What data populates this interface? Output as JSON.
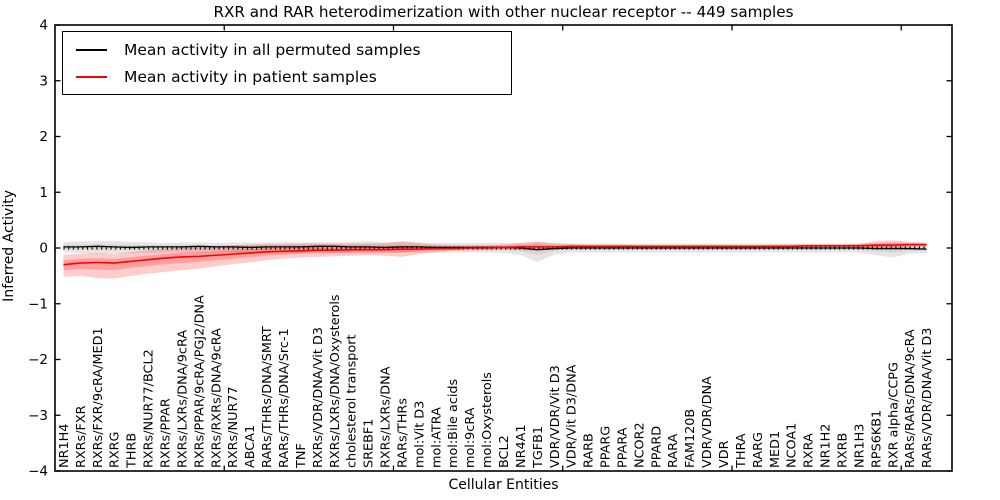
{
  "chart_data": {
    "type": "line",
    "title": "RXR and RAR heterodimerization with other nuclear receptor -- 449 samples",
    "xlabel": "Cellular Entities",
    "ylabel": "Inferred Activity",
    "xlim": [
      0,
      53
    ],
    "ylim": [
      -4,
      4
    ],
    "yticks": [
      4,
      3,
      2,
      1,
      0,
      -1,
      -2,
      -3,
      -4
    ],
    "xticks": [
      10,
      20,
      30,
      40,
      50
    ],
    "grid": false,
    "legend": {
      "position": "upper left"
    },
    "zero_line": {
      "y": 0,
      "style": "dense-vertical-dashes",
      "color": "#000000"
    },
    "categories": [
      "NR1H4",
      "RXRs/FXR",
      "RXRs/FXR/9cRA/MED1",
      "RXRG",
      "THRB",
      "RXRs/NUR77/BCL2",
      "RXRs/PPAR",
      "RXRs/LXRs/DNA/9cRA",
      "RXRs/PPAR/9cRA/PGJ2/DNA",
      "RXRs/RXRs/DNA/9cRA",
      "RXRs/NUR77",
      "ABCA1",
      "RARs/THRs/DNA/SMRT",
      "RARs/THRs/DNA/Src-1",
      "TNF",
      "RXRs/VDR/DNA/Vit D3",
      "RXRs/LXRs/DNA/Oxysterols",
      "cholesterol transport",
      "SREBF1",
      "RXRs/LXRs/DNA",
      "RARs/THRs",
      "mol:Vit D3",
      "mol:ATRA",
      "mol:Bile acids",
      "mol:9cRA",
      "mol:Oxysterols",
      "BCL2",
      "NR4A1",
      "TGFB1",
      "VDR/VDR/Vit D3",
      "VDR/Vit D3/DNA",
      "RARB",
      "PPARG",
      "PPARA",
      "NCOR2",
      "PPARD",
      "RARA",
      "FAM120B",
      "VDR/VDR/DNA",
      "VDR",
      "THRA",
      "RARG",
      "MED1",
      "NCOA1",
      "RXRA",
      "NR1H2",
      "RXRB",
      "NR1H3",
      "RPS6KB1",
      "RXR alpha/CCPG",
      "RARs/RARs/DNA/9cRA",
      "RARs/VDR/DNA/Vit D3"
    ],
    "series": [
      {
        "name": "Mean activity in all permuted samples",
        "color": "#000000",
        "band_fill": "rgba(0,0,0,0.10)",
        "band_fill_inner": "rgba(0,0,0,0.06)",
        "values": [
          0.02,
          0.02,
          0.03,
          0.02,
          0.01,
          0.02,
          0.02,
          0.02,
          0.03,
          0.02,
          0.02,
          0.01,
          0.02,
          0.02,
          0.02,
          0.03,
          0.03,
          0.02,
          0.02,
          0.01,
          0.02,
          0.02,
          0.01,
          0.01,
          0.01,
          0.01,
          0.01,
          0.0,
          -0.03,
          -0.01,
          0.0,
          0.0,
          0.0,
          0.0,
          0.0,
          0.0,
          0.0,
          0.0,
          0.0,
          0.0,
          0.0,
          0.0,
          0.0,
          0.0,
          0.0,
          0.0,
          0.0,
          0.0,
          -0.01,
          -0.01,
          -0.01,
          -0.02
        ],
        "band_lo": [
          -0.08,
          -0.09,
          -0.1,
          -0.09,
          -0.1,
          -0.09,
          -0.08,
          -0.08,
          -0.08,
          -0.08,
          -0.08,
          -0.09,
          -0.08,
          -0.08,
          -0.09,
          -0.08,
          -0.08,
          -0.09,
          -0.1,
          -0.09,
          -0.08,
          -0.08,
          -0.09,
          -0.08,
          -0.08,
          -0.08,
          -0.09,
          -0.12,
          -0.25,
          -0.12,
          -0.08,
          -0.08,
          -0.08,
          -0.08,
          -0.08,
          -0.08,
          -0.08,
          -0.08,
          -0.08,
          -0.08,
          -0.08,
          -0.08,
          -0.08,
          -0.08,
          -0.08,
          -0.08,
          -0.08,
          -0.08,
          -0.13,
          -0.17,
          -0.1,
          -0.09
        ],
        "band_hi": [
          0.11,
          0.12,
          0.12,
          0.13,
          0.11,
          0.1,
          0.09,
          0.1,
          0.1,
          0.09,
          0.1,
          0.1,
          0.1,
          0.11,
          0.1,
          0.1,
          0.1,
          0.11,
          0.12,
          0.1,
          0.11,
          0.1,
          0.09,
          0.09,
          0.09,
          0.09,
          0.09,
          0.09,
          0.1,
          0.09,
          0.08,
          0.08,
          0.08,
          0.08,
          0.08,
          0.08,
          0.08,
          0.08,
          0.08,
          0.08,
          0.08,
          0.08,
          0.08,
          0.08,
          0.08,
          0.08,
          0.08,
          0.08,
          0.09,
          0.1,
          0.09,
          0.08
        ]
      },
      {
        "name": "Mean activity in patient samples",
        "color": "#ff0000",
        "band_fill": "rgba(255,0,0,0.20)",
        "band_fill_inner": "rgba(255,0,0,0.22)",
        "values": [
          -0.3,
          -0.27,
          -0.26,
          -0.27,
          -0.24,
          -0.21,
          -0.18,
          -0.16,
          -0.15,
          -0.13,
          -0.11,
          -0.09,
          -0.07,
          -0.06,
          -0.05,
          -0.04,
          -0.04,
          -0.03,
          -0.03,
          -0.03,
          -0.02,
          -0.02,
          -0.01,
          -0.01,
          0.0,
          0.0,
          0.01,
          0.02,
          0.02,
          0.02,
          0.03,
          0.03,
          0.03,
          0.03,
          0.03,
          0.03,
          0.03,
          0.03,
          0.03,
          0.03,
          0.03,
          0.03,
          0.03,
          0.03,
          0.04,
          0.04,
          0.04,
          0.04,
          0.05,
          0.05,
          0.06,
          0.06
        ],
        "band_lo": [
          -0.52,
          -0.5,
          -0.54,
          -0.55,
          -0.5,
          -0.46,
          -0.43,
          -0.4,
          -0.37,
          -0.33,
          -0.29,
          -0.26,
          -0.22,
          -0.19,
          -0.17,
          -0.16,
          -0.15,
          -0.14,
          -0.13,
          -0.14,
          -0.16,
          -0.11,
          -0.07,
          -0.05,
          -0.04,
          -0.04,
          -0.03,
          -0.04,
          -0.05,
          -0.03,
          -0.01,
          0.0,
          0.0,
          0.01,
          0.01,
          0.01,
          0.01,
          0.01,
          0.01,
          0.01,
          0.01,
          0.01,
          0.01,
          0.01,
          0.01,
          0.02,
          0.02,
          0.01,
          -0.02,
          -0.01,
          0.02,
          0.02
        ],
        "band_hi": [
          -0.12,
          -0.1,
          -0.09,
          -0.1,
          -0.07,
          -0.04,
          -0.01,
          0.01,
          0.02,
          0.03,
          0.05,
          0.06,
          0.07,
          0.07,
          0.08,
          0.08,
          0.08,
          0.08,
          0.08,
          0.09,
          0.12,
          0.09,
          0.06,
          0.05,
          0.05,
          0.05,
          0.06,
          0.09,
          0.12,
          0.08,
          0.07,
          0.06,
          0.06,
          0.06,
          0.05,
          0.05,
          0.05,
          0.05,
          0.05,
          0.05,
          0.05,
          0.05,
          0.06,
          0.06,
          0.06,
          0.06,
          0.06,
          0.07,
          0.12,
          0.14,
          0.11,
          0.1
        ]
      }
    ]
  }
}
